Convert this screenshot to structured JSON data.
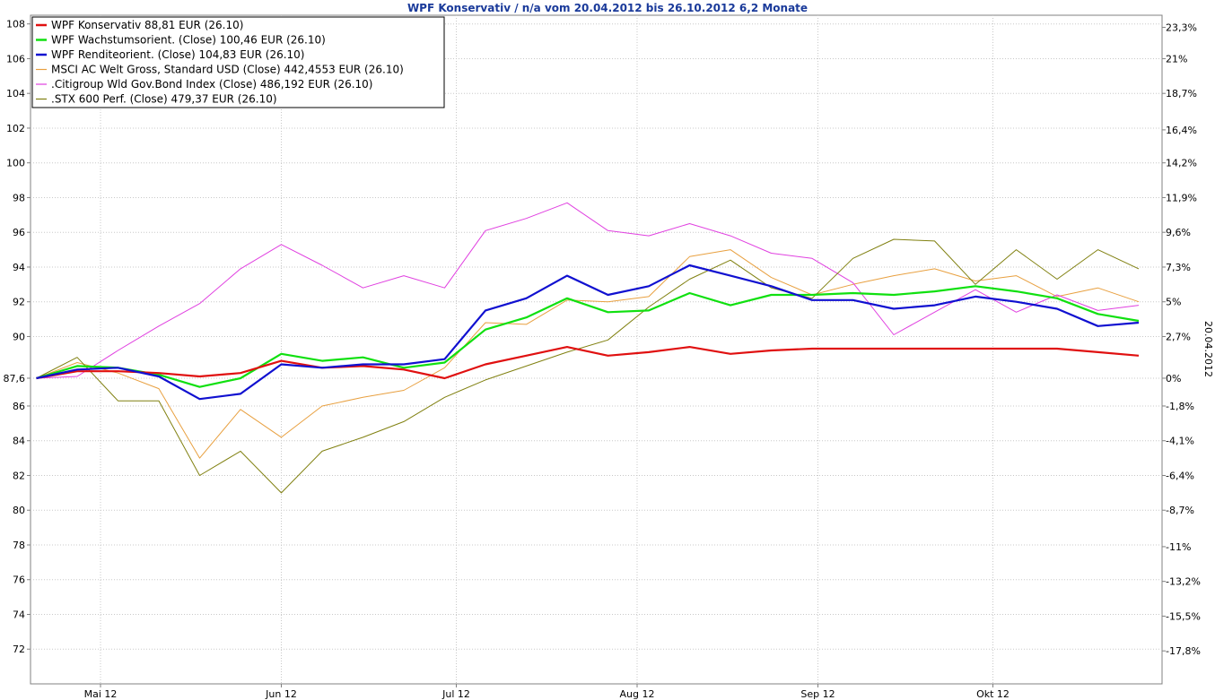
{
  "chart_data": {
    "type": "line",
    "title": "WPF Konservativ / n/a vom 20.04.2012 bis 26.10.2012 6,2 Monate",
    "right_axis_label": "20.04.2012",
    "xlabel": "",
    "ylabel": "",
    "ylim": [
      70,
      108.5
    ],
    "grid": true,
    "legend_position": "top-left",
    "x": [
      "20.04.2012",
      "27.04.2012",
      "04.05.2012",
      "11.05.2012",
      "18.05.2012",
      "25.05.2012",
      "01.06.2012",
      "08.06.2012",
      "15.06.2012",
      "22.06.2012",
      "29.06.2012",
      "06.07.2012",
      "13.07.2012",
      "20.07.2012",
      "27.07.2012",
      "03.08.2012",
      "10.08.2012",
      "17.08.2012",
      "24.08.2012",
      "31.08.2012",
      "07.09.2012",
      "14.09.2012",
      "21.09.2012",
      "28.09.2012",
      "05.10.2012",
      "12.10.2012",
      "19.10.2012",
      "26.10.2012"
    ],
    "x_tick_labels": [
      "Mai 12",
      "Jun 12",
      "Jul 12",
      "Aug 12",
      "Sep 12",
      "Okt 12"
    ],
    "x_tick_dates": [
      "01.05.2012",
      "01.06.2012",
      "01.07.2012",
      "01.08.2012",
      "01.09.2012",
      "01.10.2012"
    ],
    "y_left_ticks": [
      72,
      74,
      76,
      78,
      80,
      82,
      84,
      86,
      87.6,
      90,
      92,
      94,
      96,
      98,
      100,
      102,
      104,
      106,
      108
    ],
    "y_left_tick_labels": [
      "72",
      "74",
      "76",
      "78",
      "80",
      "82",
      "84",
      "86",
      "87,6",
      "90",
      "92",
      "94",
      "96",
      "98",
      "100",
      "102",
      "104",
      "106",
      "108"
    ],
    "y_right_ticks": [
      {
        "value": 107.8,
        "label": "23,3%"
      },
      {
        "value": 106.0,
        "label": "21%"
      },
      {
        "value": 104.0,
        "label": "18,7%"
      },
      {
        "value": 101.9,
        "label": "16,4%"
      },
      {
        "value": 100.0,
        "label": "14,2%"
      },
      {
        "value": 98.0,
        "label": "11,9%"
      },
      {
        "value": 96.0,
        "label": "9,6%"
      },
      {
        "value": 94.0,
        "label": "7,3%"
      },
      {
        "value": 92.0,
        "label": "5%"
      },
      {
        "value": 90.0,
        "label": "2,7%"
      },
      {
        "value": 87.6,
        "label": "0%"
      },
      {
        "value": 86.0,
        "label": "-1,8%"
      },
      {
        "value": 84.0,
        "label": "-4,1%"
      },
      {
        "value": 82.0,
        "label": "-6,4%"
      },
      {
        "value": 80.0,
        "label": "-8,7%"
      },
      {
        "value": 77.9,
        "label": "-11%"
      },
      {
        "value": 75.9,
        "label": "-13,2%"
      },
      {
        "value": 73.9,
        "label": "-15,5%"
      },
      {
        "value": 71.9,
        "label": "-17,8%"
      }
    ],
    "series": [
      {
        "name": "WPF Konservativ 88,81 EUR (26.10)",
        "color": "#e01010",
        "width": 2.2,
        "values": [
          87.6,
          88.0,
          88.0,
          87.9,
          87.7,
          87.9,
          88.6,
          88.2,
          88.3,
          88.1,
          87.6,
          88.4,
          88.9,
          89.4,
          88.9,
          89.1,
          89.4,
          89.0,
          89.2,
          89.3,
          89.3,
          89.3,
          89.3,
          89.3,
          89.3,
          89.3,
          89.1,
          88.9
        ]
      },
      {
        "name": "WPF Wachstumsorient. (Close) 100,46 EUR (26.10)",
        "color": "#10e010",
        "width": 2.2,
        "values": [
          87.6,
          88.3,
          88.2,
          87.8,
          87.1,
          87.6,
          89.0,
          88.6,
          88.8,
          88.2,
          88.5,
          90.4,
          91.1,
          92.2,
          91.4,
          91.5,
          92.5,
          91.8,
          92.4,
          92.4,
          92.5,
          92.4,
          92.6,
          92.9,
          92.6,
          92.2,
          91.3,
          90.9
        ]
      },
      {
        "name": "WPF Renditeorient. (Close) 104,83 EUR (26.10)",
        "color": "#1010d0",
        "width": 2.2,
        "values": [
          87.6,
          88.1,
          88.2,
          87.7,
          86.4,
          86.7,
          88.4,
          88.2,
          88.4,
          88.4,
          88.7,
          91.5,
          92.2,
          93.5,
          92.4,
          92.9,
          94.1,
          93.5,
          92.9,
          92.1,
          92.1,
          91.6,
          91.8,
          92.3,
          92.0,
          91.6,
          90.6,
          90.8
        ]
      },
      {
        "name": "MSCI AC Welt Gross, Standard USD (Close) 442,4553 EUR (26.10)",
        "color": "#e8a040",
        "width": 1,
        "values": [
          87.6,
          88.5,
          87.9,
          87.0,
          83.0,
          85.8,
          84.2,
          86.0,
          86.5,
          86.9,
          88.2,
          90.8,
          90.7,
          92.1,
          92.0,
          92.3,
          94.6,
          95.0,
          93.4,
          92.4,
          93.0,
          93.5,
          93.9,
          93.2,
          93.5,
          92.3,
          92.8,
          92.0
        ]
      },
      {
        "name": ".Citigroup Wld Gov.Bond Index (Close) 486,192 EUR (26.10)",
        "color": "#e040e0",
        "width": 1,
        "values": [
          87.6,
          87.7,
          89.2,
          90.6,
          91.9,
          93.9,
          95.3,
          94.1,
          92.8,
          93.5,
          92.8,
          96.1,
          96.8,
          97.7,
          96.1,
          95.8,
          96.5,
          95.8,
          94.8,
          94.5,
          93.1,
          90.1,
          91.4,
          92.7,
          91.4,
          92.4,
          91.5,
          91.8
        ]
      },
      {
        "name": ".STX 600 Perf. (Close) 479,37 EUR (26.10)",
        "color": "#808010",
        "width": 1,
        "values": [
          87.6,
          88.8,
          86.3,
          86.3,
          82.0,
          83.4,
          81.0,
          83.4,
          84.2,
          85.1,
          86.5,
          87.5,
          88.3,
          89.1,
          89.8,
          91.7,
          93.3,
          94.4,
          92.8,
          92.2,
          94.5,
          95.6,
          95.5,
          93.0,
          95.0,
          93.3,
          95.0,
          93.9
        ]
      }
    ]
  }
}
